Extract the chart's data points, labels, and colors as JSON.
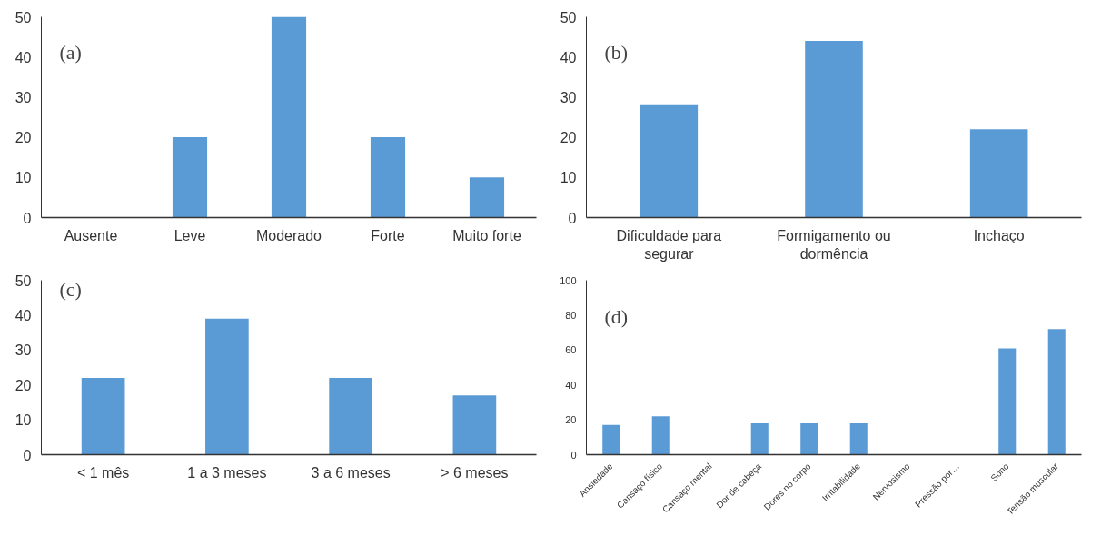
{
  "chart_data": [
    {
      "type": "bar",
      "annotations": [
        "(a)"
      ],
      "categories": [
        "Ausente",
        "Leve",
        "Moderado",
        "Forte",
        "Muito forte"
      ],
      "values": [
        0,
        20,
        50,
        20,
        10
      ],
      "color": "#5b9bd5",
      "ylim": [
        0,
        50
      ],
      "yticks": [
        0,
        10,
        20,
        30,
        40,
        50
      ],
      "grid": false
    },
    {
      "type": "bar",
      "annotations": [
        "(b)"
      ],
      "categories": [
        "Dificuldade para segurar",
        "Formigamento ou dormência",
        "Inchaço"
      ],
      "values": [
        28,
        44,
        22
      ],
      "color": "#5b9bd5",
      "ylim": [
        0,
        50
      ],
      "yticks": [
        0,
        10,
        20,
        30,
        40,
        50
      ],
      "grid": false
    },
    {
      "type": "bar",
      "annotations": [
        "(c)"
      ],
      "categories": [
        "< 1 mês",
        "1 a 3 meses",
        "3 a 6 meses",
        "> 6 meses"
      ],
      "values": [
        22,
        39,
        22,
        17
      ],
      "color": "#5b9bd5",
      "ylim": [
        0,
        50
      ],
      "yticks": [
        0,
        10,
        20,
        30,
        40,
        50
      ],
      "grid": false
    },
    {
      "type": "bar",
      "annotations": [
        "(d)"
      ],
      "categories": [
        "Ansiedade",
        "Cansaço físico",
        "Cansaço mental",
        "Dor de cabeça",
        "Dores no corpo",
        "Irritabilidade",
        "Nervosismo",
        "Pressão por…",
        "Sono",
        "Tensão muscular"
      ],
      "values": [
        17,
        22,
        0,
        18,
        18,
        18,
        0,
        0,
        61,
        72
      ],
      "color": "#5b9bd5",
      "ylim": [
        0,
        100
      ],
      "yticks": [
        0,
        20,
        40,
        60,
        80,
        100
      ],
      "grid": false
    }
  ]
}
